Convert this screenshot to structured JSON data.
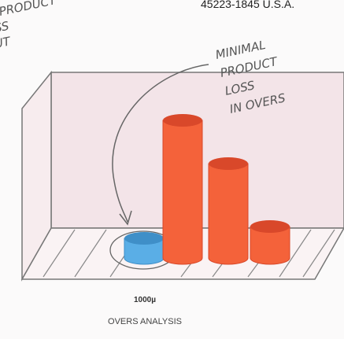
{
  "chart_data": {
    "type": "bar",
    "title": "OVERS ANALYSIS",
    "x_label": "1000µ",
    "header_text": "45223-1845 U.S.A.",
    "categories": [
      null,
      null,
      null,
      null
    ],
    "values": [
      25,
      175,
      120,
      40
    ],
    "colors": [
      "#5aaee6",
      "#f4623a",
      "#f4623a",
      "#f4623a"
    ],
    "annotation": [
      "MINIMAL",
      "PRODUCT",
      "LOSS",
      "IN OVERS"
    ],
    "corner_note": [
      "PRODUCT",
      "SS",
      "UT"
    ]
  }
}
